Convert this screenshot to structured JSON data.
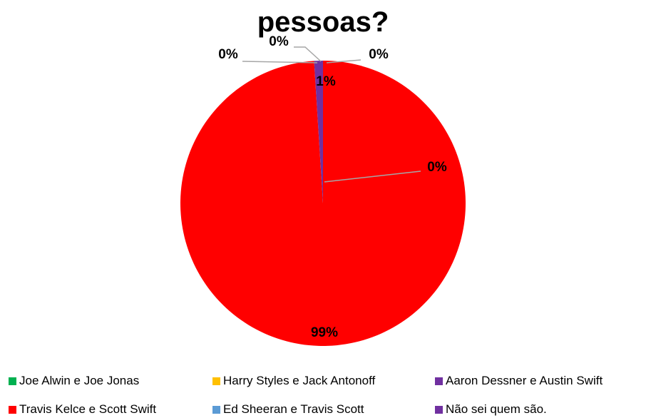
{
  "chart_data": {
    "type": "pie",
    "title": "pessoas?",
    "slices": [
      {
        "label": "Joe Alwin e Joe Jonas",
        "value": 0,
        "display": "0%",
        "color": "#00B050"
      },
      {
        "label": "Harry Styles e Jack Antonoff",
        "value": 0,
        "display": "0%",
        "color": "#FFC000"
      },
      {
        "label": "Aaron Dessner e Austin Swift",
        "value": 0,
        "display": "0%",
        "color": "#7030A0"
      },
      {
        "label": "Travis Kelce e Scott Swift",
        "value": 99,
        "display": "99%",
        "color": "#FF0000"
      },
      {
        "label": "Ed Sheeran e Travis Scott",
        "value": 0,
        "display": "0%",
        "color": "#5B9BD5"
      },
      {
        "label": "Não sei quem são.",
        "value": 1,
        "display": "1%",
        "color": "#7030A0"
      }
    ],
    "legend_position": "bottom"
  }
}
